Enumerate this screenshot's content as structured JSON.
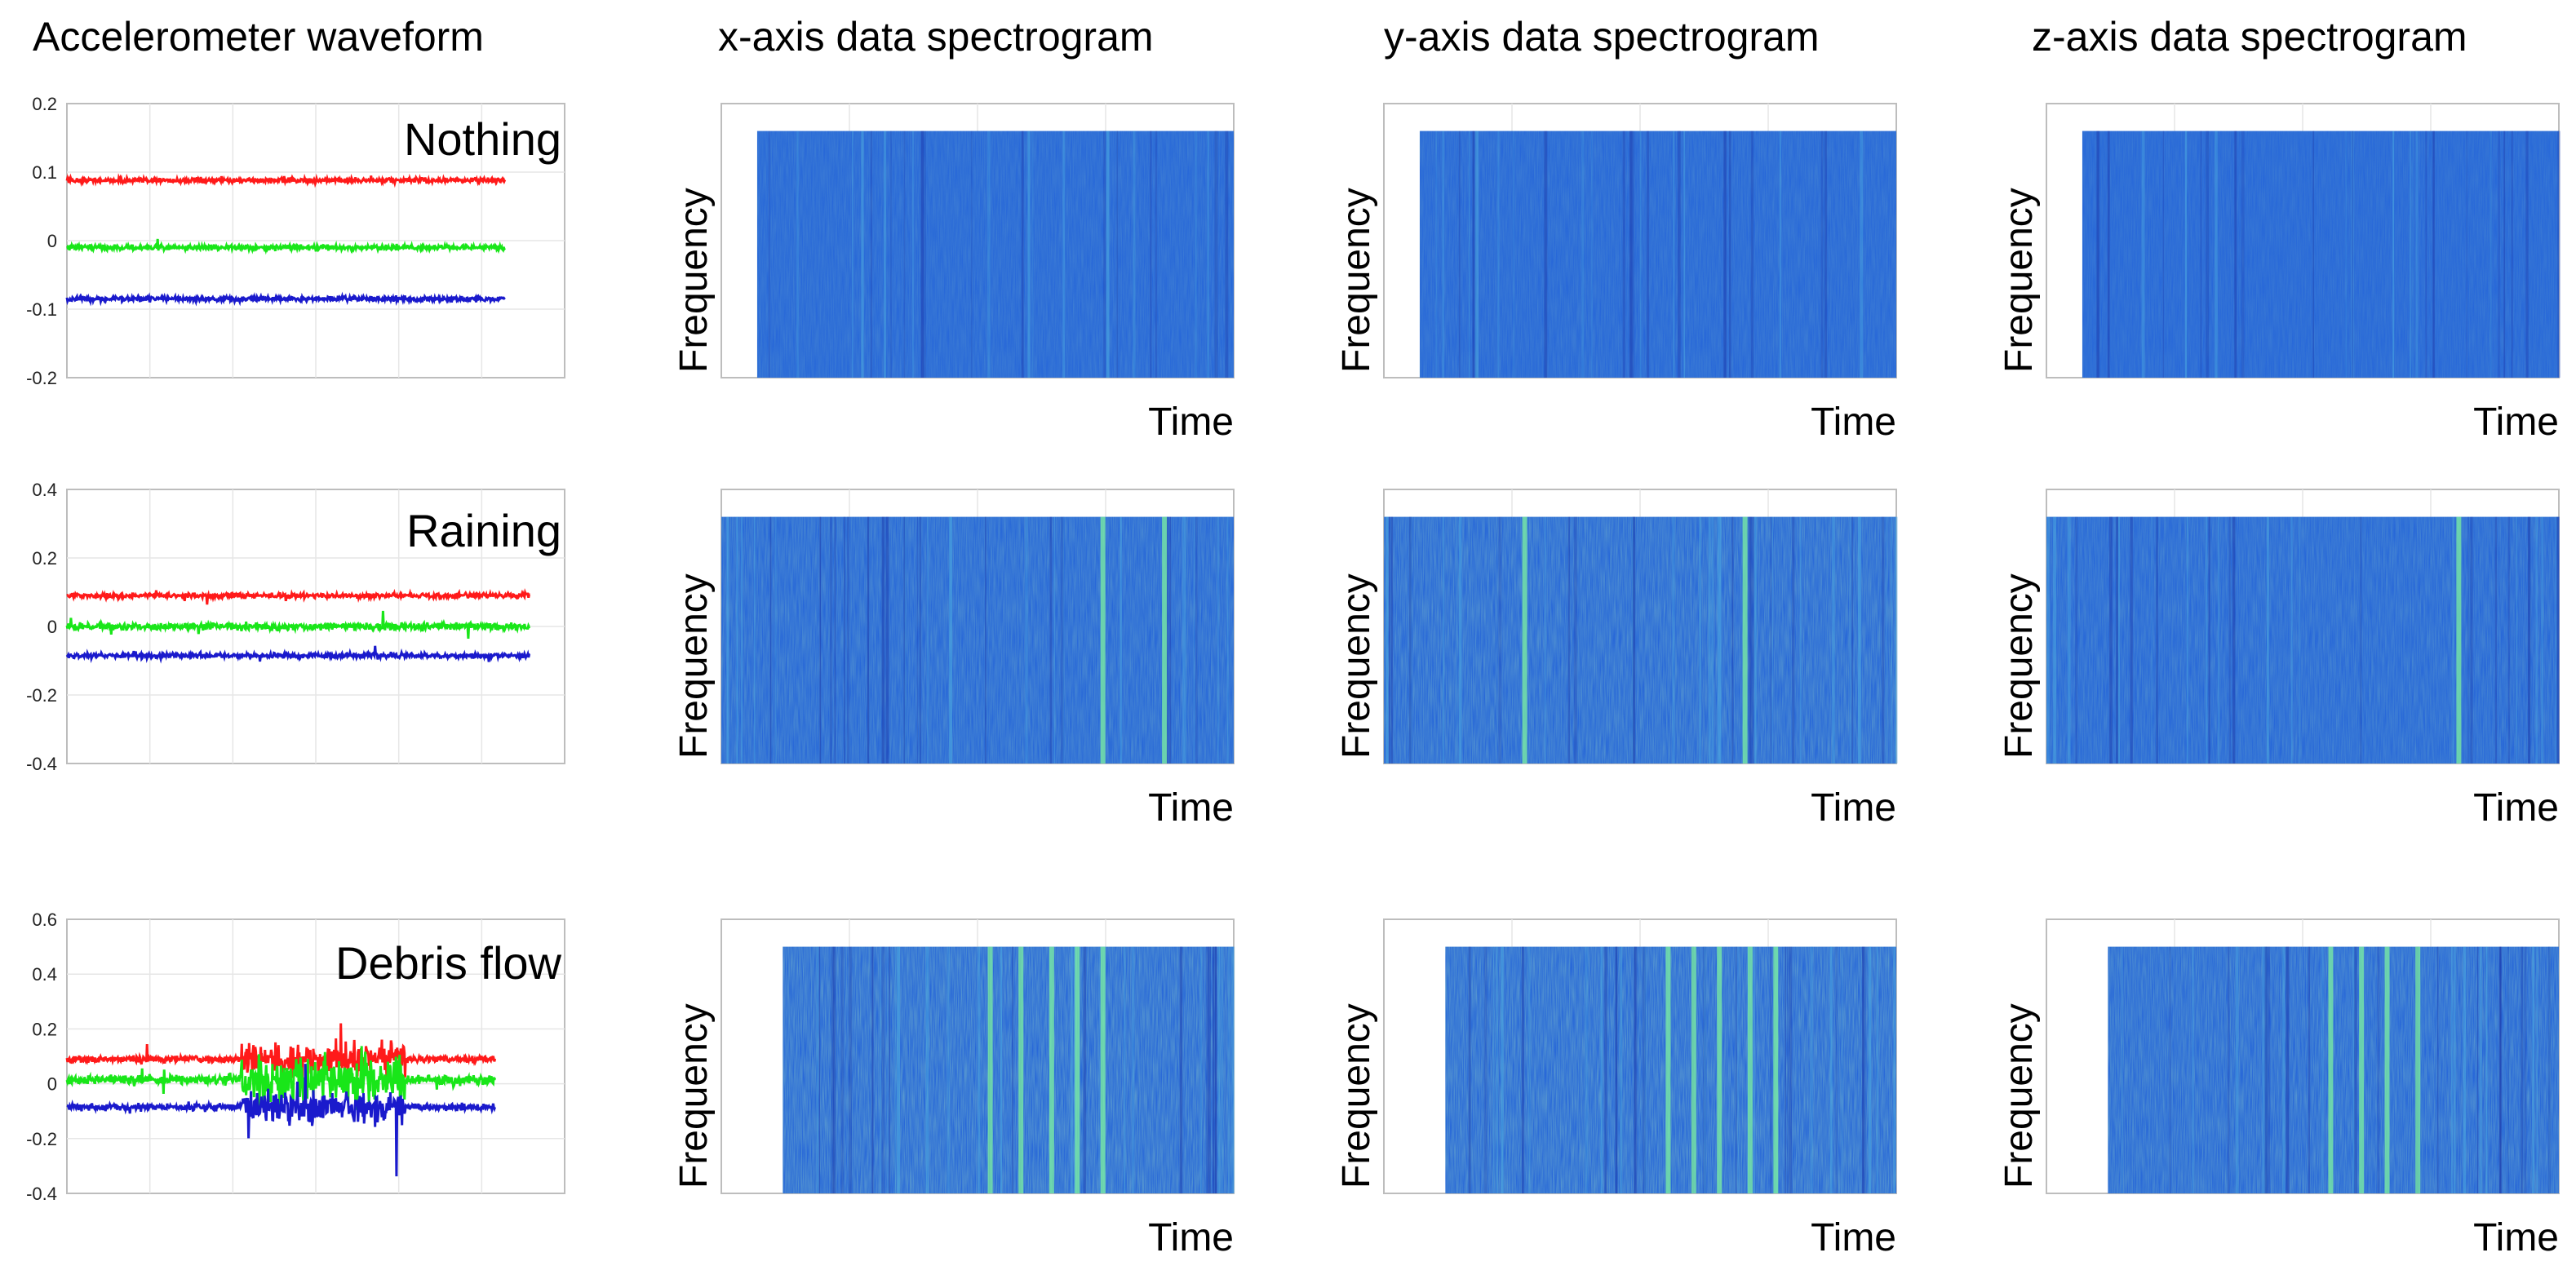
{
  "chart_data": {
    "type": "figure-grid",
    "column_titles": [
      "Accelerometer waveform",
      "x-axis data spectrogram",
      "y-axis data spectrogram",
      "z-axis data spectrogram"
    ],
    "colors": {
      "x": "#ff1a1a",
      "y": "#19e619",
      "z": "#1a1acc",
      "spec_base": "#2868d8",
      "spec_bright": "#7cf0a0"
    },
    "spectrogram_xlabel": "Time",
    "spectrogram_ylabel": "Frequency",
    "rows": [
      {
        "condition": "Nothing",
        "waveform": {
          "type": "line",
          "ylim": [
            -0.2,
            0.2
          ],
          "yticks": [
            "0.2",
            "0.1",
            "0",
            "-0.1",
            "-0.2"
          ],
          "series": [
            {
              "name": "x",
              "mean": 0.088,
              "noise": 0.006
            },
            {
              "name": "y",
              "mean": -0.01,
              "noise": 0.006
            },
            {
              "name": "z",
              "mean": -0.085,
              "noise": 0.006
            }
          ],
          "x_extent": 0.88
        },
        "spectrograms": [
          {
            "axis": "x",
            "start": 0.07,
            "intensity": 0.15,
            "bright_bands": []
          },
          {
            "axis": "y",
            "start": 0.07,
            "intensity": 0.15,
            "bright_bands": []
          },
          {
            "axis": "z",
            "start": 0.07,
            "intensity": 0.12,
            "bright_bands": []
          }
        ]
      },
      {
        "condition": "Raining",
        "waveform": {
          "type": "line",
          "ylim": [
            -0.4,
            0.4
          ],
          "yticks": [
            "0.4",
            "0.2",
            "0",
            "-0.2",
            "-0.4"
          ],
          "series": [
            {
              "name": "x",
              "mean": 0.09,
              "noise": 0.012
            },
            {
              "name": "y",
              "mean": 0.0,
              "noise": 0.018
            },
            {
              "name": "z",
              "mean": -0.085,
              "noise": 0.012
            }
          ],
          "x_extent": 0.93
        },
        "spectrograms": [
          {
            "axis": "x",
            "start": 0.0,
            "intensity": 0.25,
            "bright_bands": [
              0.74,
              0.86
            ]
          },
          {
            "axis": "y",
            "start": 0.0,
            "intensity": 0.3,
            "bright_bands": [
              0.27,
              0.7
            ]
          },
          {
            "axis": "z",
            "start": 0.0,
            "intensity": 0.22,
            "bright_bands": [
              0.8
            ]
          }
        ]
      },
      {
        "condition": "Debris flow",
        "waveform": {
          "type": "line",
          "ylim": [
            -0.4,
            0.6
          ],
          "yticks": [
            "0.6",
            "0.4",
            "0.2",
            "0",
            "-0.2",
            "-0.4"
          ],
          "series": [
            {
              "name": "x",
              "mean": 0.09,
              "noise": 0.02
            },
            {
              "name": "y",
              "mean": 0.015,
              "noise": 0.03
            },
            {
              "name": "z",
              "mean": -0.085,
              "noise": 0.02
            }
          ],
          "x_extent": 0.86,
          "burst": [
            0.35,
            0.68
          ]
        },
        "spectrograms": [
          {
            "axis": "x",
            "start": 0.12,
            "intensity": 0.35,
            "bright_bands": [
              0.52,
              0.58,
              0.64,
              0.69,
              0.74
            ]
          },
          {
            "axis": "y",
            "start": 0.12,
            "intensity": 0.35,
            "bright_bands": [
              0.55,
              0.6,
              0.65,
              0.71,
              0.76
            ]
          },
          {
            "axis": "z",
            "start": 0.12,
            "intensity": 0.3,
            "bright_bands": [
              0.55,
              0.61,
              0.66,
              0.72
            ]
          }
        ]
      }
    ]
  }
}
